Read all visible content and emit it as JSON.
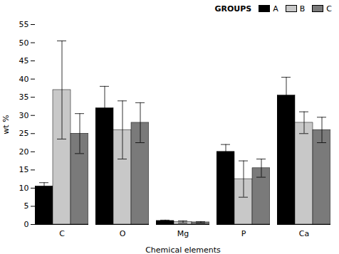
{
  "chart_data": {
    "type": "bar",
    "categories": [
      "C",
      "O",
      "Mg",
      "P",
      "Ca"
    ],
    "series": [
      {
        "name": "A",
        "color": "#000000",
        "values": [
          10.5,
          32.0,
          1.0,
          20.0,
          35.5
        ],
        "errors": [
          1.0,
          6.0,
          0.2,
          2.0,
          5.0
        ]
      },
      {
        "name": "B",
        "color": "#c8c8c8",
        "values": [
          37.0,
          26.0,
          0.7,
          12.5,
          28.0
        ],
        "errors": [
          13.5,
          8.0,
          0.3,
          5.0,
          3.0
        ]
      },
      {
        "name": "C",
        "color": "#7a7a7a",
        "values": [
          25.0,
          28.0,
          0.6,
          15.5,
          26.0
        ],
        "errors": [
          5.5,
          5.5,
          0.2,
          2.5,
          3.5
        ]
      }
    ],
    "xlabel": "Chemical elements",
    "ylabel": "wt %",
    "legend_title": "GROUPS",
    "legend": "upper right",
    "ylim": [
      0,
      55
    ],
    "yticks": [
      0,
      5,
      10,
      15,
      20,
      25,
      30,
      35,
      40,
      45,
      50,
      55
    ],
    "grid": false
  }
}
